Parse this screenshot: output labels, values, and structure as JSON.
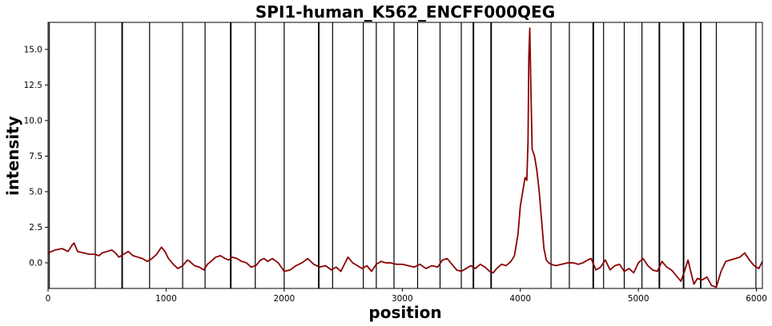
{
  "chart_data": {
    "type": "line",
    "title": "SPI1-human_K562_ENCFF000QEG",
    "xlabel": "position",
    "ylabel": "intensity",
    "xlim": [
      0,
      6050
    ],
    "ylim": [
      -1.8,
      16.9
    ],
    "x_ticks": [
      0,
      1000,
      2000,
      3000,
      4000,
      5000,
      6000
    ],
    "x_tick_labels": [
      "0",
      "1000",
      "2000",
      "3000",
      "4000",
      "5000",
      "6000"
    ],
    "y_ticks": [
      0.0,
      2.5,
      5.0,
      7.5,
      10.0,
      12.5,
      15.0
    ],
    "y_tick_labels": [
      "0.0",
      "2.5",
      "5.0",
      "7.5",
      "10.0",
      "12.5",
      "15.0"
    ],
    "grid": false,
    "line_color": "#8b0000",
    "vline_color": "#000000",
    "vlines": [
      10,
      400,
      625,
      630,
      860,
      1140,
      1330,
      1545,
      1550,
      1755,
      2000,
      2290,
      2295,
      2410,
      2670,
      2780,
      2930,
      3130,
      3320,
      3500,
      3600,
      3605,
      3750,
      3755,
      4260,
      4415,
      4615,
      4620,
      4705,
      4880,
      5030,
      5175,
      5180,
      5380,
      5385,
      5525,
      5530,
      5660,
      5995
    ],
    "series": [
      {
        "name": "",
        "color": "#8b0000",
        "x": [
          0,
          60,
          120,
          170,
          200,
          220,
          250,
          300,
          350,
          400,
          430,
          460,
          500,
          540,
          570,
          600,
          640,
          680,
          720,
          760,
          800,
          840,
          880,
          920,
          960,
          990,
          1020,
          1060,
          1100,
          1140,
          1180,
          1200,
          1240,
          1280,
          1320,
          1350,
          1380,
          1420,
          1460,
          1500,
          1530,
          1560,
          1600,
          1640,
          1680,
          1720,
          1760,
          1800,
          1830,
          1860,
          1900,
          1950,
          2000,
          2050,
          2100,
          2150,
          2200,
          2250,
          2300,
          2350,
          2400,
          2440,
          2480,
          2510,
          2540,
          2580,
          2620,
          2660,
          2700,
          2740,
          2780,
          2820,
          2860,
          2900,
          2950,
          3000,
          3050,
          3100,
          3150,
          3200,
          3250,
          3300,
          3340,
          3380,
          3420,
          3460,
          3500,
          3540,
          3580,
          3620,
          3660,
          3700,
          3740,
          3770,
          3800,
          3840,
          3880,
          3920,
          3950,
          3980,
          4000,
          4020,
          4040,
          4055,
          4065,
          4072,
          4080,
          4090,
          4100,
          4120,
          4140,
          4160,
          4180,
          4200,
          4220,
          4240,
          4260,
          4300,
          4350,
          4400,
          4450,
          4490,
          4530,
          4570,
          4600,
          4640,
          4680,
          4720,
          4760,
          4800,
          4840,
          4880,
          4920,
          4960,
          5000,
          5040,
          5080,
          5120,
          5160,
          5200,
          5240,
          5280,
          5320,
          5360,
          5390,
          5420,
          5440,
          5470,
          5500,
          5540,
          5580,
          5620,
          5660,
          5700,
          5740,
          5780,
          5820,
          5860,
          5900,
          5940,
          5980,
          6020,
          6050
        ],
        "y": [
          0.7,
          0.9,
          1.0,
          0.8,
          1.2,
          1.4,
          0.8,
          0.7,
          0.6,
          0.6,
          0.5,
          0.7,
          0.8,
          0.9,
          0.7,
          0.4,
          0.6,
          0.8,
          0.5,
          0.4,
          0.3,
          0.1,
          0.3,
          0.6,
          1.1,
          0.8,
          0.3,
          -0.1,
          -0.4,
          -0.2,
          0.2,
          0.1,
          -0.2,
          -0.3,
          -0.5,
          -0.1,
          0.1,
          0.4,
          0.5,
          0.3,
          0.2,
          0.4,
          0.3,
          0.1,
          0.0,
          -0.3,
          -0.2,
          0.2,
          0.3,
          0.1,
          0.3,
          0.0,
          -0.6,
          -0.5,
          -0.2,
          0.0,
          0.3,
          -0.1,
          -0.3,
          -0.2,
          -0.5,
          -0.3,
          -0.6,
          -0.1,
          0.4,
          0.0,
          -0.2,
          -0.4,
          -0.2,
          -0.6,
          -0.1,
          0.1,
          0.0,
          0.0,
          -0.1,
          -0.1,
          -0.2,
          -0.3,
          -0.1,
          -0.4,
          -0.2,
          -0.3,
          0.2,
          0.3,
          -0.1,
          -0.5,
          -0.6,
          -0.4,
          -0.2,
          -0.4,
          -0.1,
          -0.3,
          -0.6,
          -0.7,
          -0.4,
          -0.1,
          -0.2,
          0.1,
          0.5,
          2.0,
          4.0,
          5.0,
          6.0,
          5.8,
          8.5,
          14.5,
          16.5,
          12.0,
          8.0,
          7.5,
          6.5,
          5.0,
          3.0,
          1.0,
          0.2,
          0.0,
          -0.1,
          -0.2,
          -0.1,
          0.0,
          0.0,
          -0.1,
          0.0,
          0.2,
          0.3,
          -0.5,
          -0.3,
          0.2,
          -0.5,
          -0.2,
          -0.1,
          -0.6,
          -0.4,
          -0.7,
          0.0,
          0.3,
          -0.2,
          -0.5,
          -0.6,
          0.1,
          -0.3,
          -0.5,
          -0.9,
          -1.3,
          -0.6,
          0.2,
          -0.5,
          -1.5,
          -1.1,
          -1.2,
          -1.0,
          -1.6,
          -1.7,
          -0.6,
          0.1,
          0.2,
          0.3,
          0.4,
          0.7,
          0.2,
          -0.2,
          -0.4,
          0.1
        ]
      }
    ]
  }
}
